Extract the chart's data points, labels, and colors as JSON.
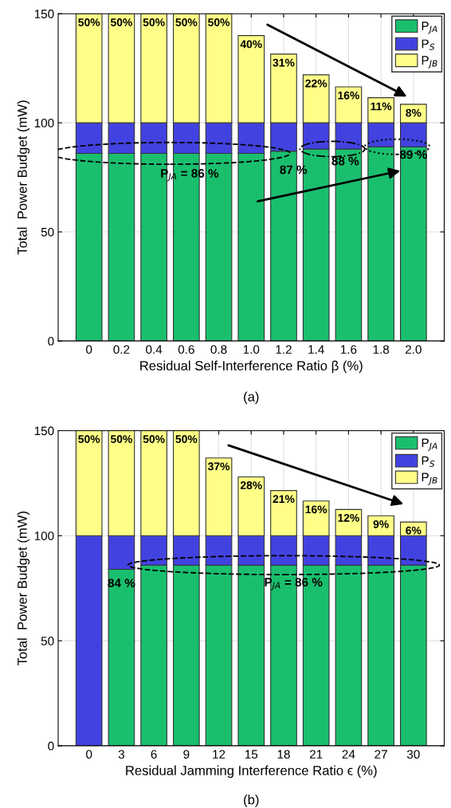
{
  "chart_data": [
    {
      "type": "bar",
      "stacked": true,
      "categories": [
        "0",
        "0.2",
        "0.4",
        "0.6",
        "0.8",
        "1.0",
        "1.2",
        "1.4",
        "1.6",
        "1.8",
        "2.0"
      ],
      "xlabel": "Residual Self-Interference Ratio β (%)",
      "ylabel": "Total  Power Budget (mW)",
      "ylim": [
        0,
        150
      ],
      "yticks": [
        0,
        50,
        100,
        150
      ],
      "grid": true,
      "legend": "top right",
      "series": [
        {
          "name": "P$_{JA}$",
          "color": "#1abf6e",
          "values": [
            86,
            86,
            86,
            86,
            86,
            86,
            87,
            88,
            88,
            89,
            89
          ]
        },
        {
          "name": "P$_{S}$",
          "color": "#4242e0",
          "values": [
            14,
            14,
            14,
            14,
            14,
            14,
            13,
            12,
            12,
            11,
            11
          ]
        },
        {
          "name": "P$_{JB}$",
          "color": "#ffff88",
          "values": [
            50,
            50,
            50,
            50,
            50,
            40,
            31.5,
            22,
            16.5,
            11.5,
            8.5
          ],
          "value_labels": [
            "50%",
            "50%",
            "50%",
            "50%",
            "50%",
            "40%",
            "31%",
            "22%",
            "16%",
            "11%",
            "8%"
          ]
        }
      ],
      "annotations": [
        "P$_{JA}$ = 86 %",
        "87 %",
        "88 %",
        "89 %",
        "(a)"
      ]
    },
    {
      "type": "bar",
      "stacked": true,
      "categories": [
        "0",
        "3",
        "6",
        "9",
        "12",
        "15",
        "18",
        "21",
        "24",
        "27",
        "30"
      ],
      "xlabel": "Residual Jamming Interference Ratio ϵ (%)",
      "ylabel": "Total  Power Budget (mW)",
      "ylim": [
        0,
        150
      ],
      "yticks": [
        0,
        50,
        100,
        150
      ],
      "grid": true,
      "legend": "top right",
      "series": [
        {
          "name": "P$_{JA}$",
          "color": "#1abf6e",
          "values": [
            0,
            84,
            86,
            86,
            86,
            86,
            86,
            86,
            86,
            86,
            86
          ]
        },
        {
          "name": "P$_{S}$",
          "color": "#4242e0",
          "values": [
            100,
            16,
            14,
            14,
            14,
            14,
            14,
            14,
            14,
            14,
            14
          ]
        },
        {
          "name": "P$_{JB}$",
          "color": "#ffff88",
          "values": [
            50,
            50,
            50,
            50,
            37,
            28,
            21.5,
            16.5,
            12.5,
            9.5,
            6.5
          ],
          "value_labels": [
            "50%",
            "50%",
            "50%",
            "50%",
            "37%",
            "28%",
            "21%",
            "16%",
            "12%",
            "9%",
            "6%"
          ]
        }
      ],
      "annotations": [
        "84 %",
        "P$_{JA}$ = 86 %",
        "(b)"
      ]
    }
  ]
}
